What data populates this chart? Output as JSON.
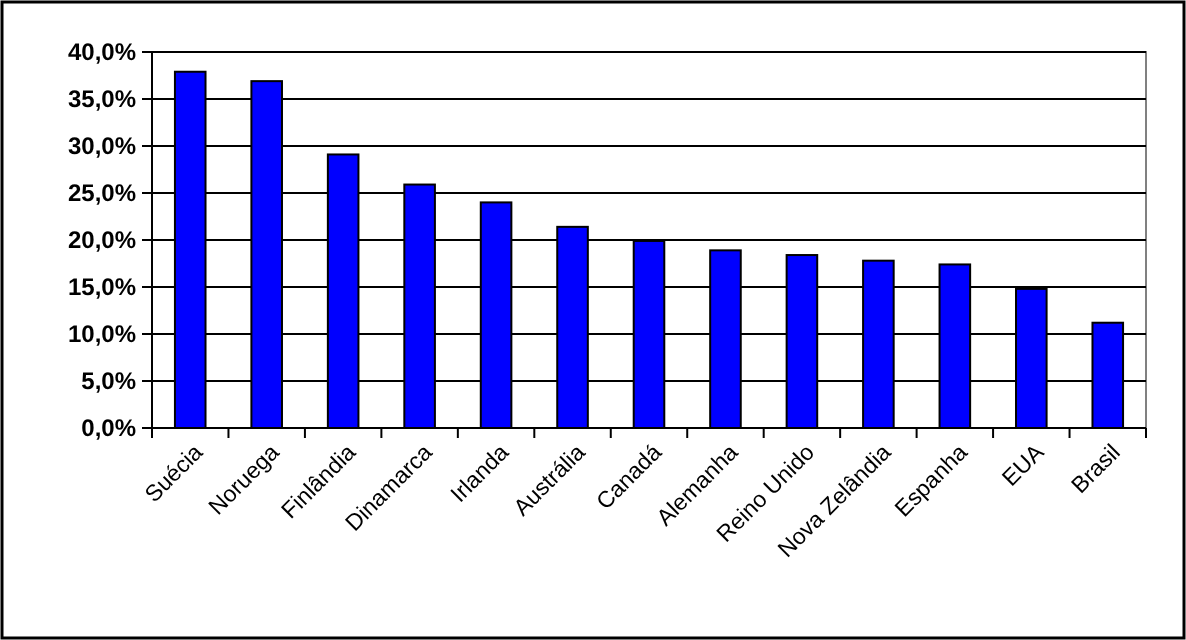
{
  "chart_data": {
    "type": "bar",
    "categories": [
      "Suécia",
      "Noruega",
      "Finlândia",
      "Dinamarca",
      "Irlanda",
      "Austrália",
      "Canadá",
      "Alemanha",
      "Reino Unido",
      "Nova Zelândia",
      "Espanha",
      "EUA",
      "Brasil"
    ],
    "values": [
      37.9,
      36.9,
      29.1,
      25.9,
      24.0,
      21.4,
      19.9,
      18.9,
      18.4,
      17.8,
      17.4,
      14.8,
      11.2
    ],
    "color": "#0000ff",
    "ylim": [
      0,
      40
    ],
    "yticks": [
      {
        "value": 0,
        "label": "0,0%"
      },
      {
        "value": 5,
        "label": "5,0%"
      },
      {
        "value": 10,
        "label": "10,0%"
      },
      {
        "value": 15,
        "label": "15,0%"
      },
      {
        "value": 20,
        "label": "20,0%"
      },
      {
        "value": 25,
        "label": "25,0%"
      },
      {
        "value": 30,
        "label": "30,0%"
      },
      {
        "value": 35,
        "label": "35,0%"
      },
      {
        "value": 40,
        "label": "40,0%"
      }
    ],
    "grid": "y"
  }
}
